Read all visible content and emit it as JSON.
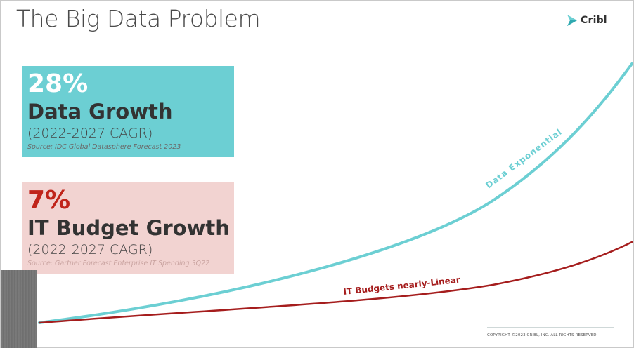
{
  "slide": {
    "title": "The Big Data Problem",
    "logo_text": "Cribl",
    "copyright": "COPYRIGHT ©2023 CRIBL, INC. ALL RIGHTS RESERVED."
  },
  "cards": [
    {
      "percent": "28%",
      "metric": "Data Growth",
      "period": "(2022-2027 CAGR)",
      "source": "Source: IDC Global Datasphere Forecast 2023"
    },
    {
      "percent": "7%",
      "metric": "IT Budget Growth",
      "period": "(2022-2027 CAGR)",
      "source": "Source: Gartner Forecast Enterprise IT Spending 3Q22"
    }
  ],
  "curves": {
    "data_label": "Data Exponential",
    "budget_label": "IT Budgets nearly-Linear"
  },
  "colors": {
    "teal": "#6ccfd3",
    "pink": "#f2d3d1",
    "red": "#c0241a",
    "data_curve": "#6ccfd3",
    "budget_curve": "#a51d1d"
  }
}
